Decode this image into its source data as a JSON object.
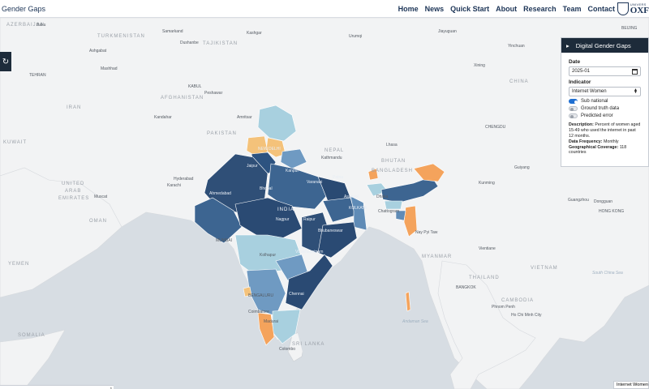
{
  "header": {
    "brand": "Gender Gaps",
    "nav": [
      "Home",
      "News",
      "Quick Start",
      "About",
      "Research",
      "Team",
      "Contact"
    ],
    "university_small": "UNIVERS",
    "university_big": "OXF"
  },
  "panel": {
    "title": "Digital Gender Gaps",
    "date_label": "Date",
    "date_value": "2025-01",
    "indicator_label": "Indicator",
    "indicator_value": "Internet Women",
    "toggles": [
      {
        "label": "Sub national",
        "on": true
      },
      {
        "label": "Ground truth data",
        "on": false
      },
      {
        "label": "Predicted error",
        "on": false
      }
    ],
    "description_label": "Description:",
    "description_text": "Percent of women aged 15-49 who used the internet in past 12 months.",
    "frequency_label": "Data Frequency:",
    "frequency_value": "Monthly",
    "coverage_label": "Geographical Coverage:",
    "coverage_value": "118 countries"
  },
  "legend_tab": "Internet Women",
  "map_labels": {
    "countries": [
      "AZERBAIJAN",
      "TURKMENISTAN",
      "TAJIKISTAN",
      "AFGHANISTAN",
      "IRAN",
      "PAKISTAN",
      "KUWAIT",
      "UNITED",
      "ARAB",
      "EMIRATES",
      "OMAN",
      "YEMEN",
      "SOMALIA",
      "NEPAL",
      "BHUTAN",
      "BANGLADESH",
      "MYANMAR",
      "CHINA",
      "THAILAND",
      "CAMBODIA",
      "VIETNAM",
      "SRI LANKA",
      "INDIA"
    ],
    "cities": [
      "Baku",
      "Samarkand",
      "Dushanbe",
      "Kashgar",
      "Ashgabat",
      "Mashhad",
      "TEHRAN",
      "KABUL",
      "Peshawar",
      "Kandahar",
      "Amritsar",
      "NEW DELHI",
      "Jaipur",
      "Kanpur",
      "Patna",
      "Varanasi",
      "Kathmandu",
      "Dhaka",
      "Ahmedabad",
      "Bhopal",
      "Nagpur",
      "Raipur",
      "Asansol",
      "KOLKATA",
      "Chattogram",
      "Karachi",
      "Hyderabad",
      "MUMBAI",
      "Bhubaneswar",
      "Visakhapatnam",
      "Kolhapur",
      "Chennai",
      "BENGALURU",
      "Coimbatore",
      "Madurai",
      "Colombo",
      "Nay Pyi Taw",
      "Vientiane",
      "BANGKOK",
      "Phnom Penh",
      "Ho Chi Minh City",
      "Kunming",
      "Guiyang",
      "CHENGDU",
      "Xining",
      "Yinchuan",
      "Jiayuguan",
      "Urumqi",
      "BEIJING",
      "Guangzhou",
      "HONG KONG",
      "Dongguan",
      "Muscat",
      "Lhasa"
    ],
    "seas": [
      "Andaman Sea",
      "South China Sea"
    ]
  }
}
